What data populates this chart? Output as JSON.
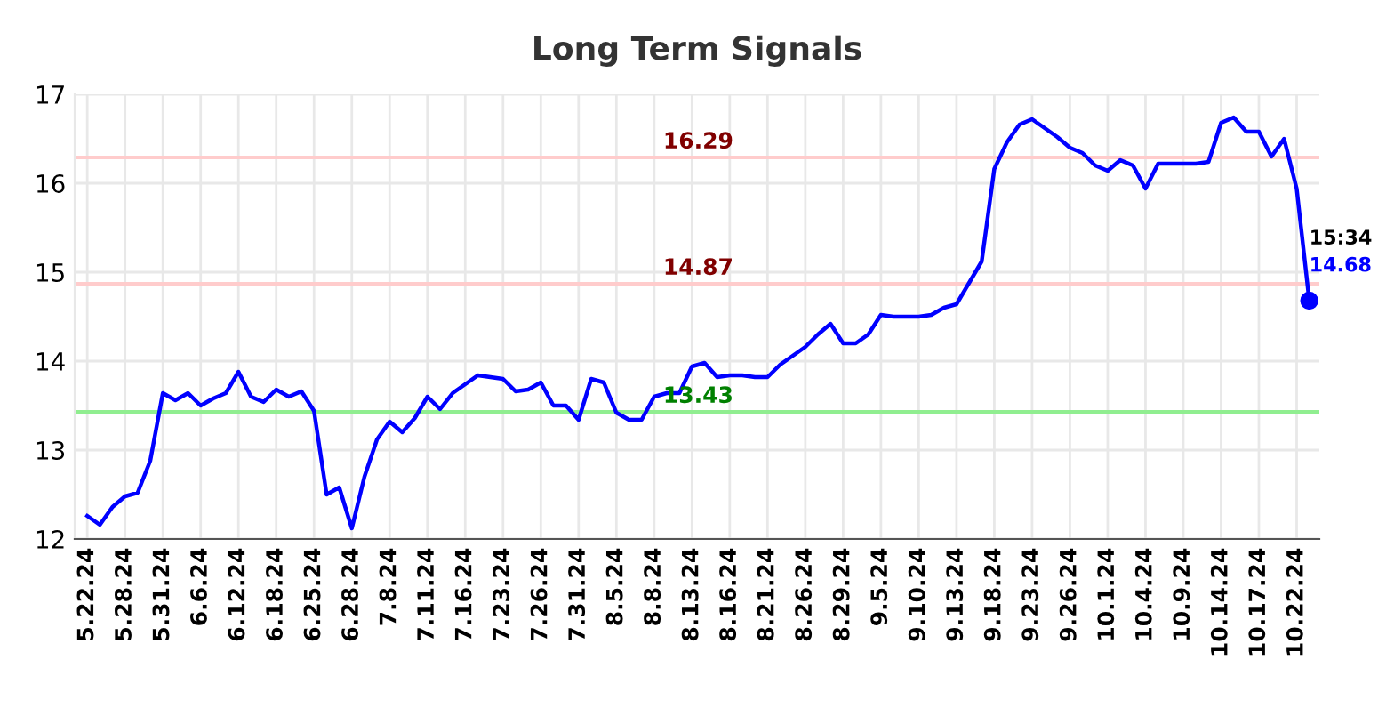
{
  "chart_data": {
    "type": "line",
    "title": "Long Term Signals",
    "categories": [
      "5.22.24",
      null,
      null,
      "5.28.24",
      null,
      null,
      "5.31.24",
      null,
      null,
      "6.6.24",
      null,
      null,
      "6.12.24",
      null,
      null,
      "6.18.24",
      null,
      null,
      "6.25.24",
      null,
      null,
      "6.28.24",
      null,
      null,
      "7.8.24",
      null,
      null,
      "7.11.24",
      null,
      null,
      "7.16.24",
      null,
      null,
      "7.23.24",
      null,
      null,
      "7.26.24",
      null,
      null,
      "7.31.24",
      null,
      null,
      "8.5.24",
      null,
      null,
      "8.8.24",
      null,
      null,
      "8.13.24",
      null,
      null,
      "8.16.24",
      null,
      null,
      "8.21.24",
      null,
      null,
      "8.26.24",
      null,
      null,
      "8.29.24",
      null,
      null,
      "9.5.24",
      null,
      null,
      "9.10.24",
      null,
      null,
      "9.13.24",
      null,
      null,
      "9.18.24",
      null,
      null,
      "9.23.24",
      null,
      null,
      "9.26.24",
      null,
      null,
      "10.1.24",
      null,
      null,
      "10.4.24",
      null,
      null,
      "10.9.24",
      null,
      null,
      "10.14.24",
      null,
      null,
      "10.17.24",
      null,
      null,
      "10.22.24",
      null
    ],
    "series": [
      {
        "color": "#0000ff",
        "values": [
          12.26,
          12.16,
          12.36,
          12.48,
          12.52,
          12.88,
          13.64,
          13.56,
          13.64,
          13.5,
          13.58,
          13.64,
          13.88,
          13.6,
          13.54,
          13.68,
          13.6,
          13.66,
          13.44,
          12.5,
          12.58,
          12.12,
          12.7,
          13.12,
          13.32,
          13.2,
          13.36,
          13.6,
          13.46,
          13.64,
          13.74,
          13.84,
          13.82,
          13.8,
          13.66,
          13.68,
          13.76,
          13.5,
          13.5,
          13.34,
          13.8,
          13.76,
          13.42,
          13.34,
          13.34,
          13.6,
          13.64,
          13.64,
          13.94,
          13.98,
          13.82,
          13.84,
          13.84,
          13.82,
          13.82,
          13.96,
          14.06,
          14.16,
          14.3,
          14.42,
          14.2,
          14.2,
          14.3,
          14.52,
          14.5,
          14.5,
          14.5,
          14.52,
          14.6,
          14.64,
          14.88,
          15.12,
          16.16,
          16.46,
          16.66,
          16.72,
          16.62,
          16.52,
          16.4,
          16.34,
          16.2,
          16.14,
          16.26,
          16.2,
          15.94,
          16.22,
          16.22,
          16.22,
          16.22,
          16.24,
          16.68,
          16.74,
          16.58,
          16.58,
          16.3,
          16.5,
          15.94,
          14.68
        ]
      },
      {
        "type": "scatter",
        "color": "#0000ff",
        "marker": "circle",
        "values": [
          null,
          null,
          null,
          null,
          null,
          null,
          null,
          null,
          null,
          null,
          null,
          null,
          null,
          null,
          null,
          null,
          null,
          null,
          null,
          null,
          null,
          null,
          null,
          null,
          null,
          null,
          null,
          null,
          null,
          null,
          null,
          null,
          null,
          null,
          null,
          null,
          null,
          null,
          null,
          null,
          null,
          null,
          null,
          null,
          null,
          null,
          null,
          null,
          null,
          null,
          null,
          null,
          null,
          null,
          null,
          null,
          null,
          null,
          null,
          null,
          null,
          null,
          null,
          null,
          null,
          null,
          null,
          null,
          null,
          null,
          null,
          null,
          null,
          null,
          null,
          null,
          null,
          null,
          null,
          null,
          null,
          null,
          null,
          null,
          null,
          null,
          null,
          null,
          null,
          null,
          null,
          null,
          null,
          null,
          null,
          null,
          null,
          14.68
        ],
        "value_labels": [
          null,
          null,
          null,
          null,
          null,
          null,
          null,
          null,
          null,
          null,
          null,
          null,
          null,
          null,
          null,
          null,
          null,
          null,
          null,
          null,
          null,
          null,
          null,
          null,
          null,
          null,
          null,
          null,
          null,
          null,
          null,
          null,
          null,
          null,
          null,
          null,
          null,
          null,
          null,
          null,
          null,
          null,
          null,
          null,
          null,
          null,
          null,
          null,
          null,
          null,
          null,
          null,
          null,
          null,
          null,
          null,
          null,
          null,
          null,
          null,
          null,
          null,
          null,
          null,
          null,
          null,
          null,
          null,
          null,
          null,
          null,
          null,
          null,
          null,
          null,
          null,
          null,
          null,
          null,
          null,
          null,
          null,
          null,
          null,
          null,
          null,
          null,
          null,
          null,
          null,
          null,
          null,
          null,
          null,
          null,
          null,
          null,
          "14.68"
        ]
      }
    ],
    "annotations": [
      "15:34"
    ],
    "ref_lines": [
      {
        "axis": "y",
        "value": 16.29,
        "label": "16.29",
        "color": "#ffcccc"
      },
      {
        "axis": "y",
        "value": 14.87,
        "label": "14.87",
        "color": "#ffcccc"
      },
      {
        "axis": "y",
        "value": 13.43,
        "label": "13.43",
        "color": "#90ee90"
      }
    ],
    "ylim": [
      12,
      17
    ],
    "yticks": [
      12,
      13,
      14,
      15,
      16,
      17
    ],
    "grid": true,
    "line_style": "solid"
  }
}
